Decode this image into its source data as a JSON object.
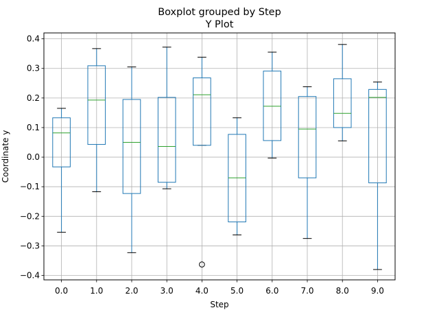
{
  "chart_data": {
    "type": "box",
    "title": "Boxplot grouped by Step",
    "subtitle": "Y Plot",
    "xlabel": "Step",
    "ylabel": "Coordinate y",
    "ylim": [
      -0.415,
      0.42
    ],
    "yticks": [
      0.4,
      0.3,
      0.2,
      0.1,
      0.0,
      -0.1,
      -0.2,
      -0.3,
      -0.4
    ],
    "ytick_labels": [
      "0.4",
      "0.3",
      "0.2",
      "0.1",
      "0.0",
      "−0.1",
      "−0.2",
      "−0.3",
      "−0.4"
    ],
    "grid": true,
    "categories": [
      "0.0",
      "1.0",
      "2.0",
      "3.0",
      "4.0",
      "5.0",
      "6.0",
      "7.0",
      "8.0",
      "9.0"
    ],
    "boxes": [
      {
        "whislo": -0.254,
        "q1": -0.033,
        "med": 0.082,
        "q3": 0.133,
        "whishi": 0.165,
        "fliers": []
      },
      {
        "whislo": -0.117,
        "q1": 0.043,
        "med": 0.193,
        "q3": 0.309,
        "whishi": 0.367,
        "fliers": []
      },
      {
        "whislo": -0.323,
        "q1": -0.123,
        "med": 0.05,
        "q3": 0.195,
        "whishi": 0.305,
        "fliers": []
      },
      {
        "whislo": -0.107,
        "q1": -0.085,
        "med": 0.036,
        "q3": 0.202,
        "whishi": 0.372,
        "fliers": []
      },
      {
        "whislo": 0.04,
        "q1": 0.04,
        "med": 0.211,
        "q3": 0.268,
        "whishi": 0.338,
        "fliers": [
          -0.363
        ]
      },
      {
        "whislo": -0.263,
        "q1": -0.219,
        "med": -0.07,
        "q3": 0.077,
        "whishi": 0.133,
        "fliers": []
      },
      {
        "whislo": -0.003,
        "q1": 0.056,
        "med": 0.172,
        "q3": 0.291,
        "whishi": 0.355,
        "fliers": []
      },
      {
        "whislo": -0.275,
        "q1": -0.07,
        "med": 0.095,
        "q3": 0.205,
        "whishi": 0.238,
        "fliers": []
      },
      {
        "whislo": 0.055,
        "q1": 0.1,
        "med": 0.148,
        "q3": 0.265,
        "whishi": 0.381,
        "fliers": []
      },
      {
        "whislo": -0.38,
        "q1": -0.087,
        "med": 0.202,
        "q3": 0.229,
        "whishi": 0.254,
        "fliers": []
      }
    ],
    "colors": {
      "box": "#1f77b4",
      "median": "#2ca02c",
      "cap": "#000000",
      "flier": "#000000",
      "grid": "#b0b0b0"
    }
  }
}
